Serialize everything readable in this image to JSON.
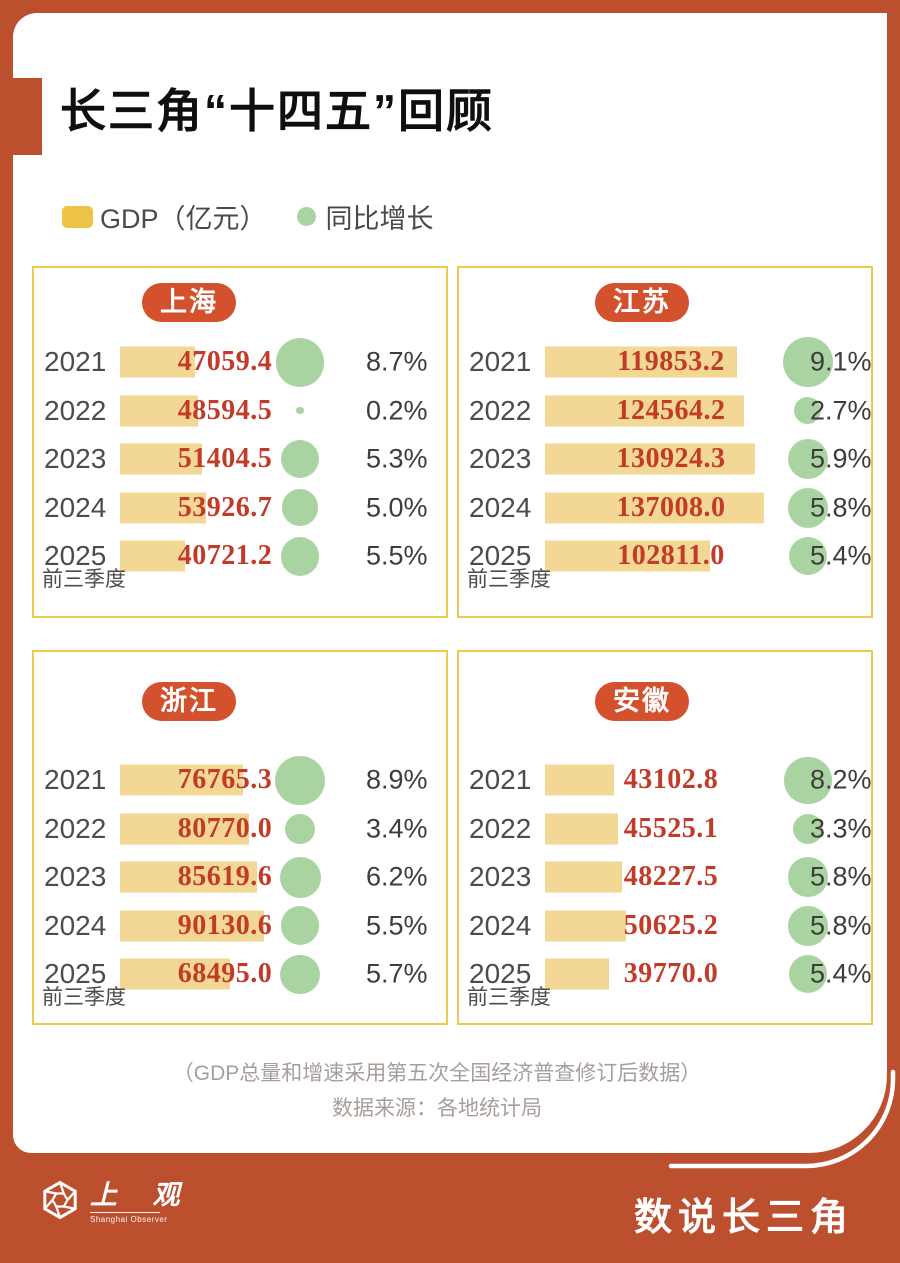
{
  "title": "长三角“十四五”回顾",
  "legend": [
    {
      "label": "GDP（亿元）",
      "swatch": "square",
      "color": "#ecc247"
    },
    {
      "label": "同比增长",
      "swatch": "circle",
      "color": "#a9d4a1"
    }
  ],
  "colors": {
    "frame_red": "#bc4f2e",
    "badge_red": "#d4512e",
    "panel_border": "#ecca51",
    "bar_yellow": "#f3d794",
    "legend_yellow": "#ecc247",
    "growth_green": "#a9d4a1",
    "value_red": "#c23a28",
    "note_gray": "#a79e9a"
  },
  "chart_data": [
    {
      "type": "bar",
      "region": "上海",
      "categories": [
        "2021",
        "2022",
        "2023",
        "2024",
        "2025"
      ],
      "period_note": {
        "category": "2025",
        "label": "前三季度"
      },
      "series": [
        {
          "name": "GDP（亿元）",
          "values": [
            "47059.4",
            "48594.5",
            "51404.5",
            "53926.7",
            "40721.2"
          ]
        },
        {
          "name": "同比增长",
          "values": [
            "8.7%",
            "0.2%",
            "5.3%",
            "5.0%",
            "5.5%"
          ]
        }
      ]
    },
    {
      "type": "bar",
      "region": "江苏",
      "categories": [
        "2021",
        "2022",
        "2023",
        "2024",
        "2025"
      ],
      "period_note": {
        "category": "2025",
        "label": "前三季度"
      },
      "series": [
        {
          "name": "GDP（亿元）",
          "values": [
            "119853.2",
            "124564.2",
            "130924.3",
            "137008.0",
            "102811.0"
          ]
        },
        {
          "name": "同比增长",
          "values": [
            "9.1%",
            "2.7%",
            "5.9%",
            "5.8%",
            "5.4%"
          ]
        }
      ]
    },
    {
      "type": "bar",
      "region": "浙江",
      "categories": [
        "2021",
        "2022",
        "2023",
        "2024",
        "2025"
      ],
      "period_note": {
        "category": "2025",
        "label": "前三季度"
      },
      "series": [
        {
          "name": "GDP（亿元）",
          "values": [
            "76765.3",
            "80770.0",
            "85619.6",
            "90130.6",
            "68495.0"
          ]
        },
        {
          "name": "同比增长",
          "values": [
            "8.9%",
            "3.4%",
            "6.2%",
            "5.5%",
            "5.7%"
          ]
        }
      ]
    },
    {
      "type": "bar",
      "region": "安徽",
      "categories": [
        "2021",
        "2022",
        "2023",
        "2024",
        "2025"
      ],
      "period_note": {
        "category": "2025",
        "label": "前三季度"
      },
      "series": [
        {
          "name": "GDP（亿元）",
          "values": [
            "43102.8",
            "45525.1",
            "48227.5",
            "50625.2",
            "39770.0"
          ]
        },
        {
          "name": "同比增长",
          "values": [
            "8.2%",
            "3.3%",
            "5.8%",
            "5.8%",
            "5.4%"
          ]
        }
      ]
    }
  ],
  "footnotes": [
    "（GDP总量和增速采用第五次全国经济普查修订后数据）",
    "数据来源：各地统计局"
  ],
  "footer": {
    "logo_cn": "上 观",
    "logo_en": "Shanghai Observer",
    "series_title": "数说长三角"
  }
}
